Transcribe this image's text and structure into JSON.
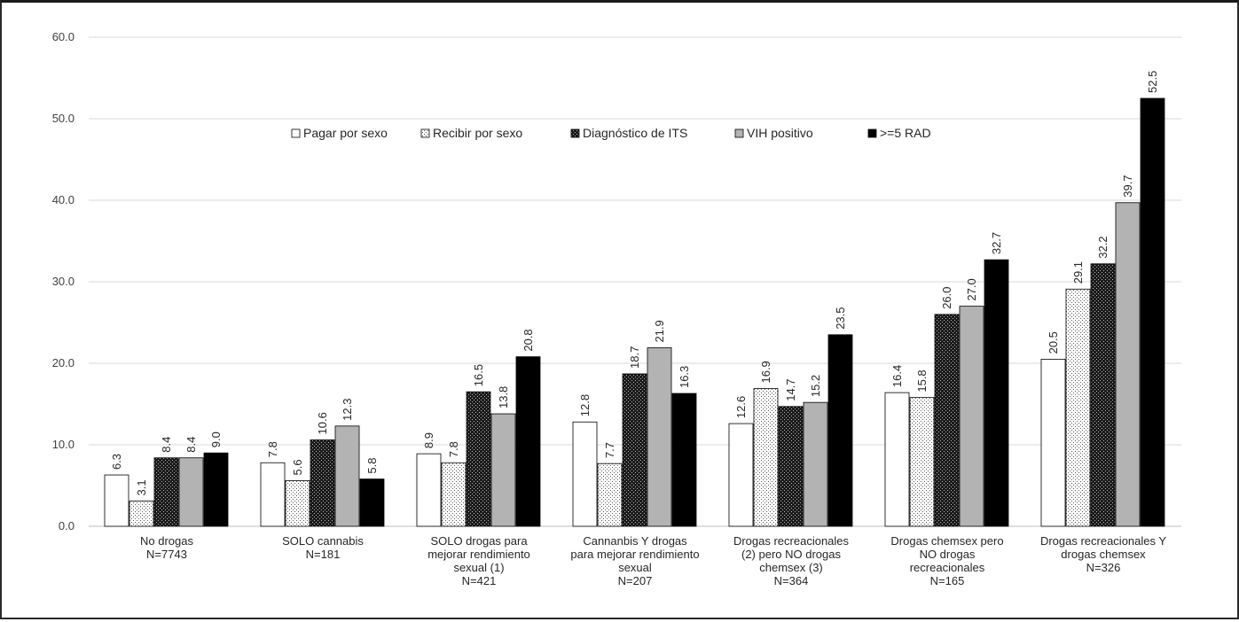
{
  "chart_data": {
    "type": "bar",
    "ylim": [
      0,
      60
    ],
    "yticks": [
      "0.0",
      "10.0",
      "20.0",
      "30.0",
      "40.0",
      "50.0",
      "60.0"
    ],
    "grid": true,
    "legend_position": "top-center",
    "categories": [
      [
        "No drogas",
        "N=7743"
      ],
      [
        "SOLO cannabis",
        "N=181"
      ],
      [
        "SOLO drogas para",
        "mejorar rendimiento",
        "sexual (1)",
        "N=421"
      ],
      [
        "Cannanbis Y drogas",
        "para mejorar rendimiento",
        "sexual",
        "N=207"
      ],
      [
        "Drogas recreacionales",
        "(2) pero NO drogas",
        "chemsex (3)",
        "N=364"
      ],
      [
        "Drogas chemsex pero",
        "NO drogas",
        "recreacionales",
        "N=165"
      ],
      [
        "Drogas recreacionales Y",
        "drogas chemsex",
        "N=326"
      ]
    ],
    "series": [
      {
        "name": "Pagar por sexo",
        "pattern": "white",
        "values": [
          6.3,
          7.8,
          8.9,
          12.8,
          12.6,
          16.4,
          20.5
        ],
        "labels": [
          "6.3",
          "7.8",
          "8.9",
          "12.8",
          "12.6",
          "16.4",
          "20.5"
        ]
      },
      {
        "name": "Recibir por sexo",
        "pattern": "dots",
        "values": [
          3.1,
          5.6,
          7.8,
          7.7,
          16.9,
          15.8,
          29.1
        ],
        "labels": [
          "3.1",
          "5.6",
          "7.8",
          "7.7",
          "16.9",
          "15.8",
          "29.1"
        ]
      },
      {
        "name": "Diagnóstico de ITS",
        "pattern": "dark-check",
        "values": [
          8.4,
          10.6,
          16.5,
          18.7,
          14.7,
          26.0,
          32.2
        ],
        "labels": [
          "8.4",
          "10.6",
          "16.5",
          "18.7",
          "14.7",
          "26.0",
          "32.2"
        ]
      },
      {
        "name": "VIH positivo",
        "pattern": "gray",
        "values": [
          8.4,
          12.3,
          13.8,
          21.9,
          15.2,
          27.0,
          39.7
        ],
        "labels": [
          "8.4",
          "12.3",
          "13.8",
          "21.9",
          "15.2",
          "27.0",
          "39.7"
        ]
      },
      {
        "name": ">=5 RAD",
        "pattern": "black",
        "values": [
          9.0,
          5.8,
          20.8,
          16.3,
          23.5,
          32.7,
          52.5
        ],
        "labels": [
          "9.0",
          "5.8",
          "20.8",
          "16.3",
          "23.5",
          "32.7",
          "52.5"
        ]
      }
    ],
    "colors": {
      "white": "#ffffff",
      "gray": "#b3b3b3",
      "black": "#000000",
      "edge": "#000000",
      "grid": "#d9d9d9",
      "axis": "#bfbfbf"
    }
  }
}
